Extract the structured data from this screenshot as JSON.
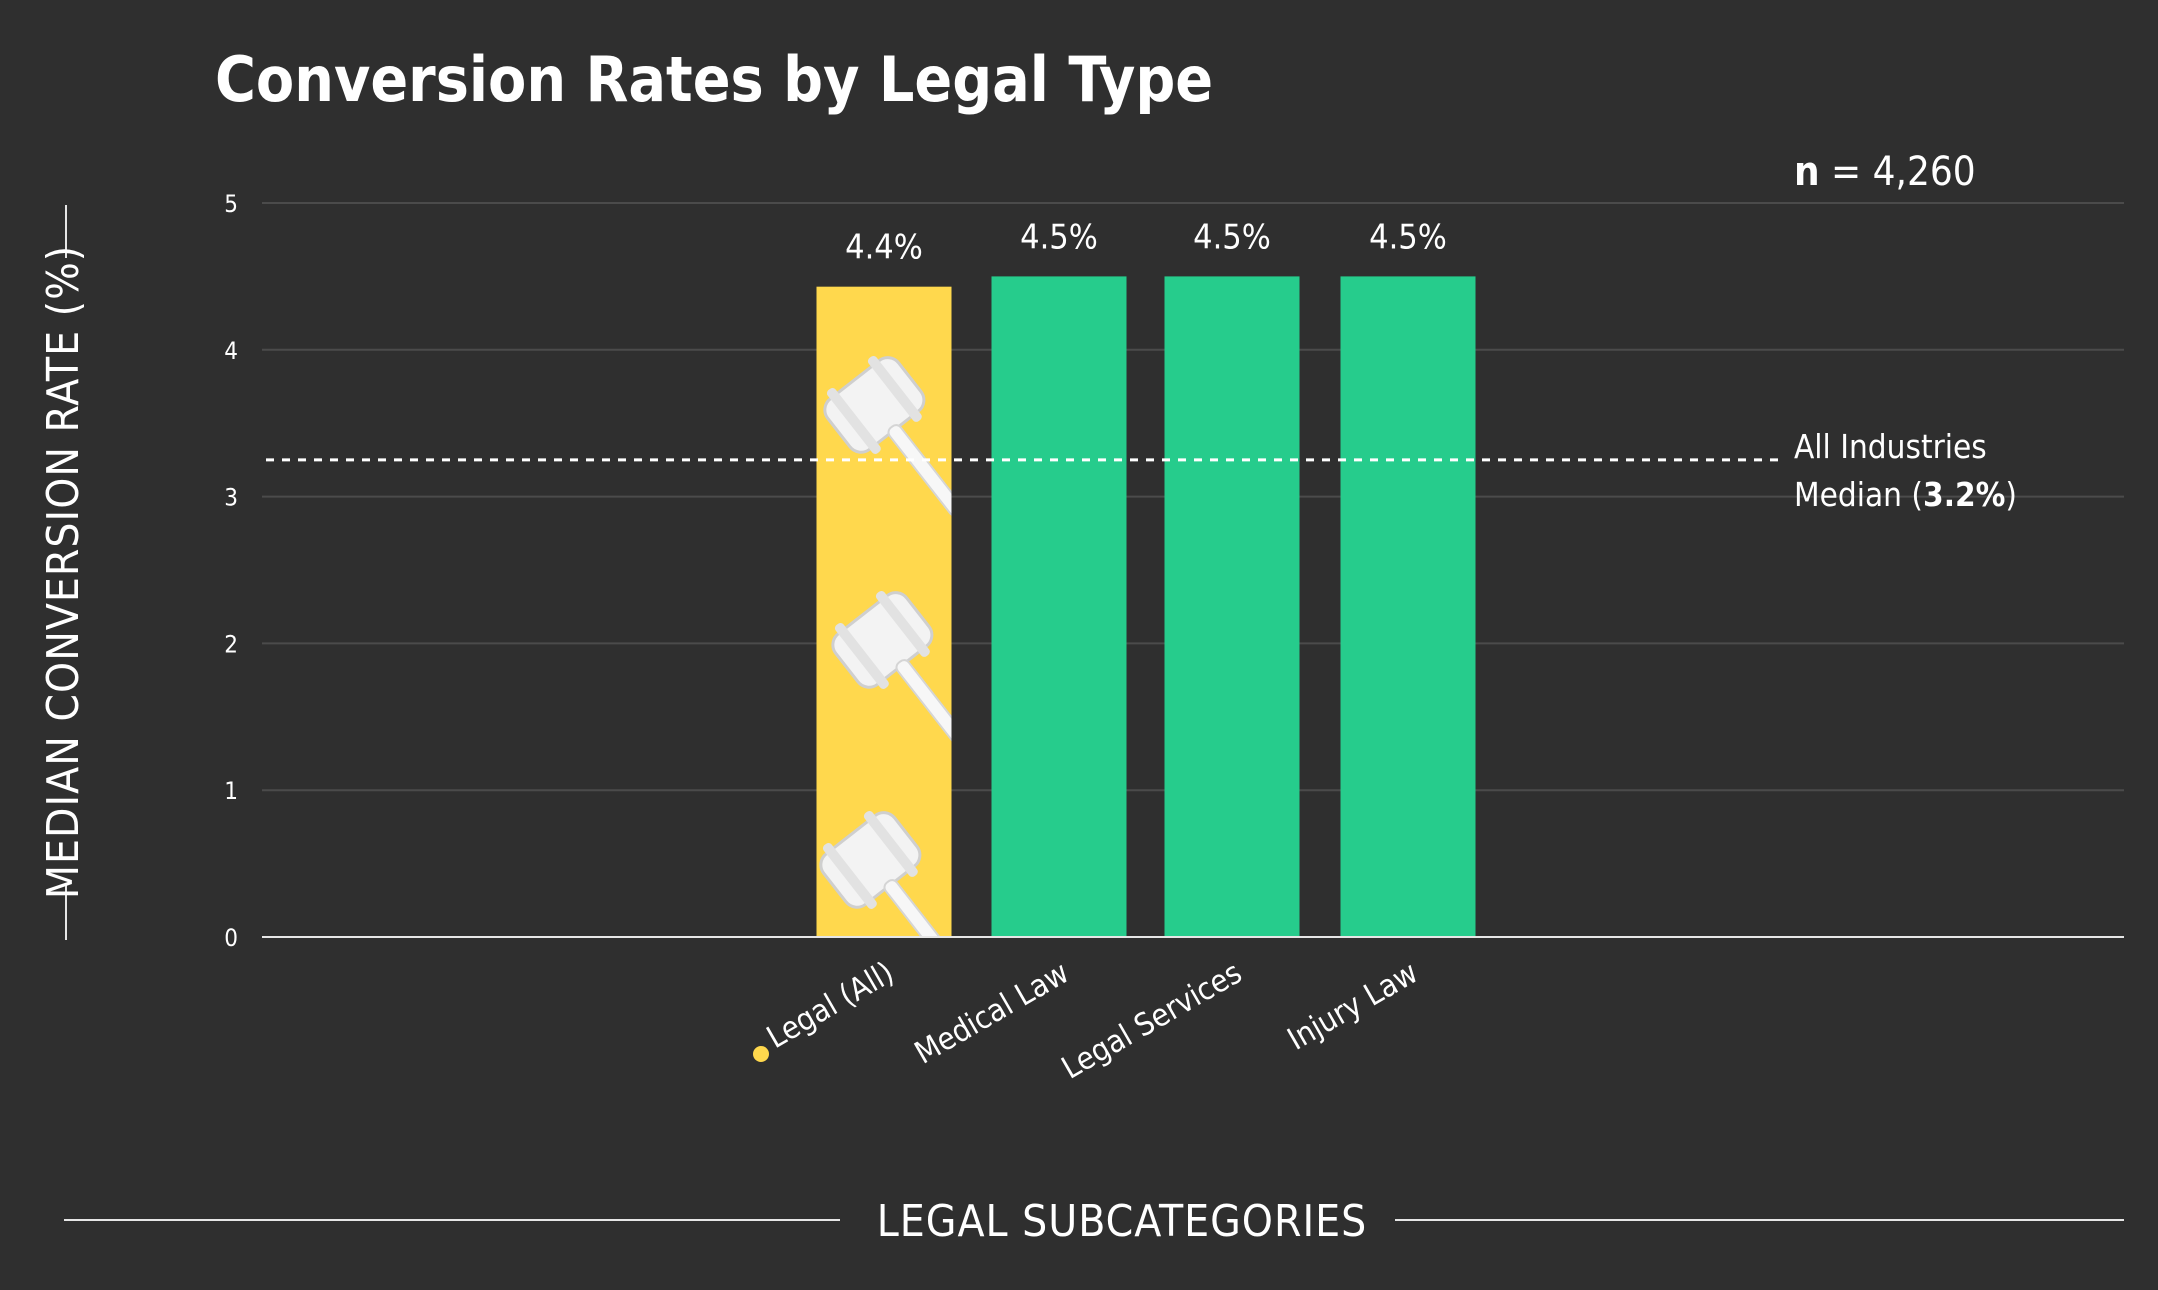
{
  "chart_data": {
    "type": "bar",
    "title": "Conversion Rates by Legal Type",
    "xlabel": "LEGAL SUBCATEGORIES",
    "ylabel": "MEDIAN CONVERSION RATE (%)",
    "ylim": [
      0,
      5
    ],
    "yticks": [
      "0",
      "1",
      "2",
      "3",
      "4",
      "5"
    ],
    "grid": true,
    "categories": [
      "Legal (All)",
      "Medical Law",
      "Legal Services",
      "Injury Law"
    ],
    "values": [
      4.43,
      4.5,
      4.5,
      4.5
    ],
    "value_labels": [
      "4.4%",
      "4.5%",
      "4.5%",
      "4.5%"
    ],
    "colors": [
      "#ffd84d",
      "#26cc8c",
      "#26cc8c",
      "#26cc8c"
    ],
    "highlight_marker_color": "#ffd84d",
    "sample_size": {
      "prefix": "n",
      "text": " = 4,260"
    },
    "reference_line": {
      "value": 3.25,
      "label_line1": "All Industries",
      "label_line2_prefix": "Median (",
      "label_line2_value": "3.2%",
      "label_line2_suffix": ")"
    },
    "bar_pattern_icon": "gavel-icon"
  }
}
